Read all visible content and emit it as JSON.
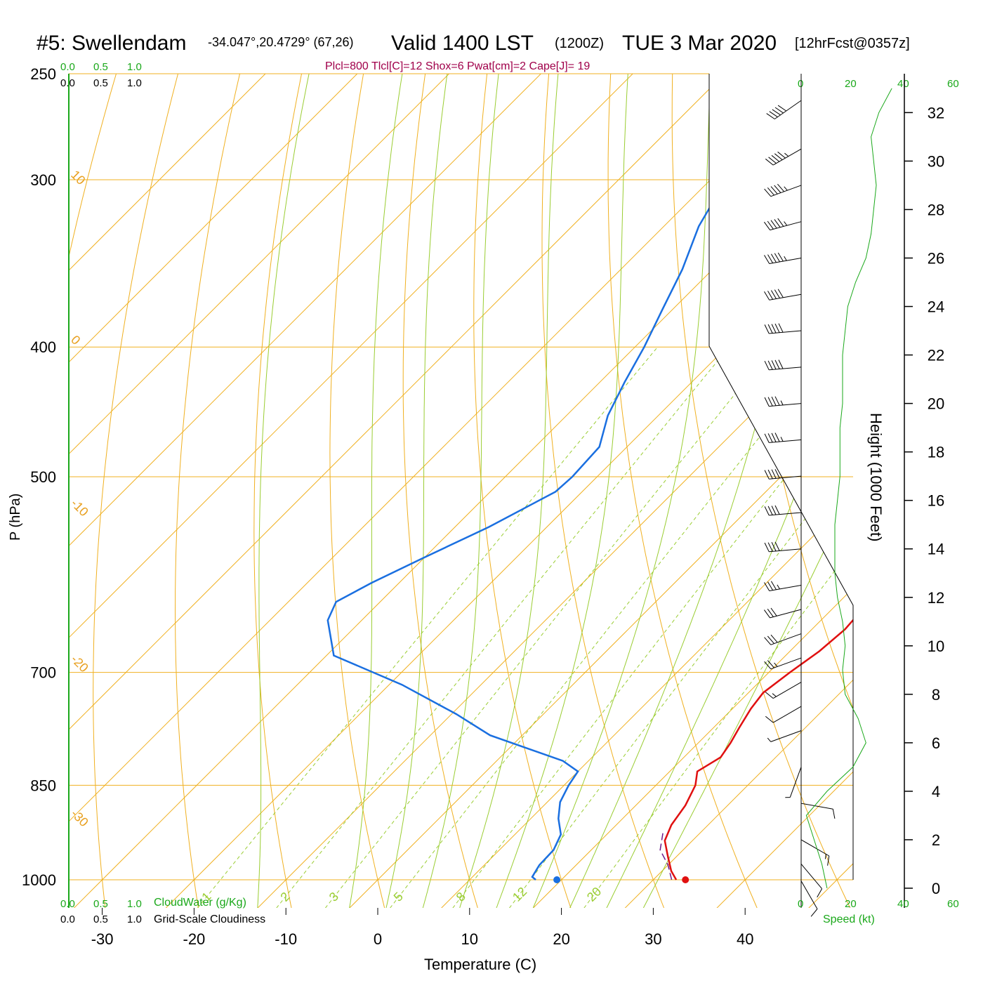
{
  "header": {
    "station": "#5: Swellendam",
    "coords": "-34.047°,20.4729° (67,26)",
    "valid": "Valid 1400 LST",
    "zulu": "(1200Z)",
    "date": "TUE 3 Mar 2020",
    "forecast": "[12hrFcst@0357z]"
  },
  "parcel_info": "Plcl=800 Tlcl[C]=12 Shox=6 Pwat[cm]=2 Cape[J]= 19",
  "colors": {
    "temperature": "#e01010",
    "dewpoint": "#1a6fe0",
    "isotherm": "#f0b020",
    "dry_adiabat": "#f0b020",
    "moist_adiabat": "#9acd32",
    "mixing_ratio": "#9acd32",
    "cloud": "#1aa81a",
    "parcel": "#6a1a8a"
  },
  "axes": {
    "xlabel": "Temperature (C)",
    "ylabel": "P (hPa)",
    "right_label": "Height (1000 Feet)",
    "x_ticks": [
      "-30",
      "-10",
      "-20",
      "0",
      "10",
      "20",
      "30",
      "40"
    ],
    "x_tick_values": [
      -30,
      -10,
      -20,
      0,
      10,
      20,
      30,
      40
    ],
    "p_ticks": [
      "250",
      "300",
      "400",
      "500",
      "700",
      "850",
      "1000"
    ],
    "p_tick_values": [
      250,
      300,
      400,
      500,
      700,
      850,
      1000
    ],
    "height_ticks": [
      "0",
      "2",
      "4",
      "6",
      "8",
      "10",
      "12",
      "14",
      "16",
      "18",
      "20",
      "22",
      "24",
      "26",
      "28",
      "30",
      "32"
    ],
    "height_tick_values": [
      0,
      2,
      4,
      6,
      8,
      10,
      12,
      14,
      16,
      18,
      20,
      22,
      24,
      26,
      28,
      30,
      32
    ],
    "xlim": [
      -34,
      46
    ],
    "plim": [
      250,
      1030
    ]
  },
  "cloud_scale": {
    "top_green": [
      "0.0",
      "0.5",
      "1.0"
    ],
    "top_black": [
      "0.0",
      "0.5",
      "1.0"
    ],
    "bottom_green": [
      "0.0",
      "0.5",
      "1.0"
    ],
    "bottom_black": [
      "0.0",
      "0.5",
      "1.0"
    ],
    "cloudwater_label": "CloudWater (g/Kg)",
    "cloudiness_label": "Grid-Scale Cloudiness"
  },
  "wind_scale": {
    "top_ticks": [
      "0",
      "20",
      "40",
      "60"
    ],
    "bottom_ticks": [
      "0",
      "20",
      "40",
      "60"
    ],
    "label": "Speed (kt)"
  },
  "isotherm_labels": {
    "left": [
      "10",
      "0",
      "-10",
      "-20",
      "-30"
    ],
    "right": [
      "0",
      "10",
      "20",
      "30"
    ]
  },
  "mixing_ratio_labels": [
    "1",
    "2",
    "3",
    "5",
    "8",
    "12",
    "20"
  ],
  "chart_data": {
    "type": "line",
    "title": "",
    "x_units": "temperature C",
    "y_units": "pressure hPa (log)",
    "series": [
      {
        "name": "",
        "kind": "temperature",
        "points": [
          [
            32.5,
            1000
          ],
          [
            31,
            985
          ],
          [
            29,
            960
          ],
          [
            27,
            935
          ],
          [
            26,
            910
          ],
          [
            25.4,
            880
          ],
          [
            24.3,
            850
          ],
          [
            23,
            830
          ],
          [
            24,
            810
          ],
          [
            23.5,
            790
          ],
          [
            22.8,
            770
          ],
          [
            22,
            745
          ],
          [
            21.6,
            725
          ],
          [
            22.3,
            700
          ],
          [
            23.2,
            675
          ],
          [
            23.6,
            650
          ],
          [
            23.3,
            625
          ],
          [
            22.1,
            600
          ],
          [
            20.6,
            575
          ],
          [
            19,
            550
          ],
          [
            17.3,
            525
          ],
          [
            15.6,
            500
          ],
          [
            13.6,
            475
          ],
          [
            11.5,
            450
          ],
          [
            9.4,
            425
          ],
          [
            7,
            400
          ],
          [
            4.1,
            375
          ],
          [
            1.2,
            350
          ],
          [
            -1.4,
            325
          ],
          [
            -4,
            300
          ],
          [
            -6.7,
            275
          ],
          [
            -9.7,
            253
          ]
        ]
      },
      {
        "name": "",
        "kind": "dewpoint",
        "points": [
          [
            17.2,
            1000
          ],
          [
            16.5,
            995
          ],
          [
            16,
            975
          ],
          [
            15.9,
            950
          ],
          [
            15,
            925
          ],
          [
            13,
            900
          ],
          [
            11.4,
            875
          ],
          [
            10.5,
            850
          ],
          [
            10,
            830
          ],
          [
            7.2,
            815
          ],
          [
            -3.5,
            780
          ],
          [
            -9.5,
            752
          ],
          [
            -18.6,
            715
          ],
          [
            -29.2,
            680
          ],
          [
            -33.7,
            640
          ],
          [
            -34.8,
            620
          ],
          [
            -33,
            600
          ],
          [
            -30.1,
            575
          ],
          [
            -26.3,
            545
          ],
          [
            -22.9,
            513
          ],
          [
            -22.7,
            500
          ],
          [
            -23,
            475
          ],
          [
            -25.5,
            450
          ],
          [
            -27.3,
            425
          ],
          [
            -29,
            400
          ],
          [
            -31.1,
            375
          ],
          [
            -33.3,
            350
          ],
          [
            -36.2,
            325
          ],
          [
            -38.3,
            300
          ],
          [
            -40.8,
            275
          ],
          [
            -42,
            258
          ]
        ]
      },
      {
        "name": "",
        "kind": "parcel",
        "points": [
          [
            32,
            1000
          ],
          [
            30,
            975
          ],
          [
            27.5,
            950
          ],
          [
            25.8,
            920
          ]
        ]
      }
    ],
    "surface_points": {
      "temperature": [
        33.5,
        1000
      ],
      "dewpoint": [
        19.5,
        1000
      ]
    },
    "winds": {
      "direction_note": "barbs from west-southwest aloft",
      "levels": [
        {
          "height_kft": 32.5,
          "speed_kt": 50,
          "dir_deg": 235
        },
        {
          "height_kft": 30.5,
          "speed_kt": 55,
          "dir_deg": 240
        },
        {
          "height_kft": 29,
          "speed_kt": 55,
          "dir_deg": 250
        },
        {
          "height_kft": 27.5,
          "speed_kt": 55,
          "dir_deg": 255
        },
        {
          "height_kft": 26,
          "speed_kt": 55,
          "dir_deg": 260
        },
        {
          "height_kft": 24.5,
          "speed_kt": 50,
          "dir_deg": 260
        },
        {
          "height_kft": 23,
          "speed_kt": 50,
          "dir_deg": 265
        },
        {
          "height_kft": 21.5,
          "speed_kt": 50,
          "dir_deg": 265
        },
        {
          "height_kft": 20,
          "speed_kt": 45,
          "dir_deg": 265
        },
        {
          "height_kft": 18.5,
          "speed_kt": 45,
          "dir_deg": 265
        },
        {
          "height_kft": 17,
          "speed_kt": 40,
          "dir_deg": 265
        },
        {
          "height_kft": 15.5,
          "speed_kt": 40,
          "dir_deg": 265
        },
        {
          "height_kft": 14,
          "speed_kt": 40,
          "dir_deg": 265
        },
        {
          "height_kft": 12.5,
          "speed_kt": 35,
          "dir_deg": 260
        },
        {
          "height_kft": 11.5,
          "speed_kt": 30,
          "dir_deg": 255
        },
        {
          "height_kft": 10.5,
          "speed_kt": 30,
          "dir_deg": 250
        },
        {
          "height_kft": 9.5,
          "speed_kt": 25,
          "dir_deg": 250
        },
        {
          "height_kft": 8.5,
          "speed_kt": 15,
          "dir_deg": 240
        },
        {
          "height_kft": 7.5,
          "speed_kt": 10,
          "dir_deg": 240
        },
        {
          "height_kft": 6.5,
          "speed_kt": 5,
          "dir_deg": 250
        },
        {
          "height_kft": 5,
          "speed_kt": 5,
          "dir_deg": 200
        },
        {
          "height_kft": 3.5,
          "speed_kt": 10,
          "dir_deg": 100
        },
        {
          "height_kft": 2,
          "speed_kt": 15,
          "dir_deg": 120
        },
        {
          "height_kft": 1,
          "speed_kt": 10,
          "dir_deg": 140
        },
        {
          "height_kft": 0.3,
          "speed_kt": 10,
          "dir_deg": 150
        }
      ],
      "speed_profile": [
        [
          0,
          10
        ],
        [
          1,
          8
        ],
        [
          2,
          5
        ],
        [
          3,
          2
        ],
        [
          4,
          10
        ],
        [
          5,
          20
        ],
        [
          6,
          25
        ],
        [
          7,
          22
        ],
        [
          8,
          17
        ],
        [
          9,
          16
        ],
        [
          10,
          17
        ],
        [
          11,
          16
        ],
        [
          12,
          14
        ],
        [
          13,
          13
        ],
        [
          14,
          13
        ],
        [
          15,
          13
        ],
        [
          16,
          14
        ],
        [
          17,
          15
        ],
        [
          18,
          15
        ],
        [
          19,
          15
        ],
        [
          20,
          16
        ],
        [
          21,
          16
        ],
        [
          22,
          16
        ],
        [
          23,
          17
        ],
        [
          24,
          18
        ],
        [
          25,
          21
        ],
        [
          26,
          25
        ],
        [
          27,
          27
        ],
        [
          28,
          28
        ],
        [
          29,
          29
        ],
        [
          30,
          28
        ],
        [
          31,
          27
        ],
        [
          32,
          30
        ],
        [
          33,
          35
        ]
      ]
    }
  }
}
